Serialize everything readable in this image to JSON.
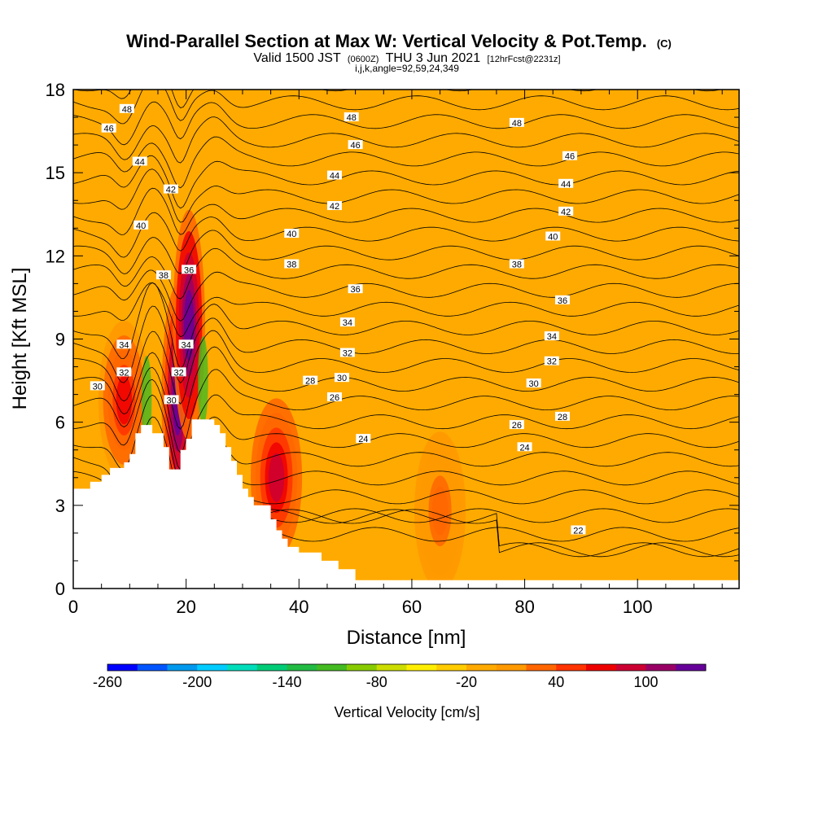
{
  "chart_data": {
    "type": "heatmap",
    "title": "Wind-Parallel Section at Max W: Vertical Velocity & Pot.Temp.",
    "title_mark": "(C)",
    "subtitle_parts": {
      "valid": "Valid 1500 JST",
      "utc": "(0600Z)",
      "date": "THU 3 Jun 2021",
      "fcst": "[12hrFcst@2231z]"
    },
    "subsubtitle": "i,j,k,angle=92,59,24,349",
    "xlabel": "Distance [nm]",
    "ylabel": "Height [Kft MSL]",
    "xlim": [
      0,
      118
    ],
    "ylim": [
      0,
      18
    ],
    "x_ticks": [
      0,
      20,
      40,
      60,
      80,
      100
    ],
    "y_ticks": [
      0,
      3,
      6,
      9,
      12,
      15,
      18
    ],
    "colorbar": {
      "title": "Vertical Velocity [cm/s]",
      "tick_labels": [
        "-260",
        "-200",
        "-140",
        "-80",
        "-20",
        "40",
        "100"
      ],
      "tick_values": [
        -260,
        -200,
        -140,
        -80,
        -20,
        40,
        100
      ],
      "min": -260,
      "max": 140,
      "colors": [
        "#0000ff",
        "#0055ff",
        "#0099ee",
        "#00ccff",
        "#00ddbb",
        "#00cc77",
        "#22bb44",
        "#44bb22",
        "#88cc00",
        "#ccdd00",
        "#ffee00",
        "#ffcc00",
        "#ffaa00",
        "#ff9900",
        "#ff6600",
        "#ff3300",
        "#ee0000",
        "#cc0033",
        "#990066",
        "#660099"
      ]
    },
    "background_field_color": "#ffaa00",
    "terrain": [
      [
        0,
        3.6
      ],
      [
        3,
        3.6
      ],
      [
        3,
        3.85
      ],
      [
        5,
        3.85
      ],
      [
        5,
        4.1
      ],
      [
        6.5,
        4.1
      ],
      [
        6.5,
        4.35
      ],
      [
        9,
        4.35
      ],
      [
        9,
        4.55
      ],
      [
        10,
        4.55
      ],
      [
        10,
        4.85
      ],
      [
        11,
        4.85
      ],
      [
        11,
        5.6
      ],
      [
        12,
        5.6
      ],
      [
        12,
        5.9
      ],
      [
        14,
        5.9
      ],
      [
        14,
        5.6
      ],
      [
        16,
        5.6
      ],
      [
        16,
        5.1
      ],
      [
        17,
        5.1
      ],
      [
        17,
        4.3
      ],
      [
        19,
        4.3
      ],
      [
        19,
        5.0
      ],
      [
        20,
        5.0
      ],
      [
        20,
        5.4
      ],
      [
        21,
        5.4
      ],
      [
        21,
        6.1
      ],
      [
        25,
        6.1
      ],
      [
        25,
        5.9
      ],
      [
        26,
        5.9
      ],
      [
        26,
        5.6
      ],
      [
        27,
        5.6
      ],
      [
        27,
        5.1
      ],
      [
        28,
        5.1
      ],
      [
        28,
        4.6
      ],
      [
        29,
        4.6
      ],
      [
        29,
        4.1
      ],
      [
        30,
        4.1
      ],
      [
        30,
        3.6
      ],
      [
        31,
        3.6
      ],
      [
        31,
        3.3
      ],
      [
        32,
        3.3
      ],
      [
        32,
        3.0
      ],
      [
        35,
        3.0
      ],
      [
        35,
        2.5
      ],
      [
        36,
        2.5
      ],
      [
        36,
        2.1
      ],
      [
        37,
        2.1
      ],
      [
        37,
        1.8
      ],
      [
        38,
        1.8
      ],
      [
        38,
        1.5
      ],
      [
        40,
        1.5
      ],
      [
        40,
        1.3
      ],
      [
        44,
        1.3
      ],
      [
        44,
        1.0
      ],
      [
        47,
        1.0
      ],
      [
        47,
        0.7
      ],
      [
        50,
        0.7
      ],
      [
        50,
        0.3
      ],
      [
        118,
        0.3
      ],
      [
        118,
        0
      ]
    ],
    "wmax_cells": [
      {
        "x": 9,
        "y": 6.8,
        "value": 60
      },
      {
        "x": 18.5,
        "y": 6.8,
        "value": 130
      },
      {
        "x": 20.5,
        "y": 9.5,
        "value": 140
      },
      {
        "x": 36,
        "y": 4.0,
        "value": 80
      },
      {
        "x": 65,
        "y": 2.8,
        "value": 25
      }
    ],
    "theta_contours": {
      "min": 22,
      "max": 48,
      "interval": 1,
      "labeled_values": [
        22,
        24,
        26,
        28,
        30,
        32,
        34,
        36,
        38,
        40,
        42,
        44,
        46,
        48
      ]
    },
    "contour_labels": [
      {
        "text": "48",
        "x": 9.5,
        "y": 17.3
      },
      {
        "text": "46",
        "x": 6.3,
        "y": 16.6
      },
      {
        "text": "44",
        "x": 11.8,
        "y": 15.4
      },
      {
        "text": "42",
        "x": 17.3,
        "y": 14.4
      },
      {
        "text": "40",
        "x": 12,
        "y": 13.1
      },
      {
        "text": "38",
        "x": 16,
        "y": 11.3
      },
      {
        "text": "36",
        "x": 20.5,
        "y": 11.5
      },
      {
        "text": "34",
        "x": 9,
        "y": 8.8
      },
      {
        "text": "34",
        "x": 20,
        "y": 8.8
      },
      {
        "text": "32",
        "x": 9,
        "y": 7.8
      },
      {
        "text": "32",
        "x": 18.7,
        "y": 7.8
      },
      {
        "text": "30",
        "x": 4.3,
        "y": 7.3
      },
      {
        "text": "30",
        "x": 17.4,
        "y": 6.8
      },
      {
        "text": "48",
        "x": 49.3,
        "y": 17.0
      },
      {
        "text": "46",
        "x": 50,
        "y": 16.0
      },
      {
        "text": "44",
        "x": 46.3,
        "y": 14.9
      },
      {
        "text": "42",
        "x": 46.3,
        "y": 13.8
      },
      {
        "text": "40",
        "x": 38.7,
        "y": 12.8
      },
      {
        "text": "38",
        "x": 38.7,
        "y": 11.7
      },
      {
        "text": "36",
        "x": 50,
        "y": 10.8
      },
      {
        "text": "34",
        "x": 48.6,
        "y": 9.6
      },
      {
        "text": "32",
        "x": 48.6,
        "y": 8.5
      },
      {
        "text": "30",
        "x": 47.6,
        "y": 7.6
      },
      {
        "text": "28",
        "x": 42,
        "y": 7.5
      },
      {
        "text": "26",
        "x": 46.3,
        "y": 6.9
      },
      {
        "text": "24",
        "x": 51.4,
        "y": 5.4
      },
      {
        "text": "48",
        "x": 78.6,
        "y": 16.8
      },
      {
        "text": "46",
        "x": 88,
        "y": 15.6
      },
      {
        "text": "44",
        "x": 87.3,
        "y": 14.6
      },
      {
        "text": "42",
        "x": 87.3,
        "y": 13.6
      },
      {
        "text": "40",
        "x": 85,
        "y": 12.7
      },
      {
        "text": "38",
        "x": 78.6,
        "y": 11.7
      },
      {
        "text": "36",
        "x": 86.7,
        "y": 10.4
      },
      {
        "text": "34",
        "x": 84.8,
        "y": 9.1
      },
      {
        "text": "32",
        "x": 84.8,
        "y": 8.2
      },
      {
        "text": "30",
        "x": 81.6,
        "y": 7.4
      },
      {
        "text": "28",
        "x": 86.7,
        "y": 6.2
      },
      {
        "text": "26",
        "x": 78.6,
        "y": 5.9
      },
      {
        "text": "24",
        "x": 80,
        "y": 5.1
      },
      {
        "text": "22",
        "x": 89.5,
        "y": 2.1
      }
    ]
  }
}
